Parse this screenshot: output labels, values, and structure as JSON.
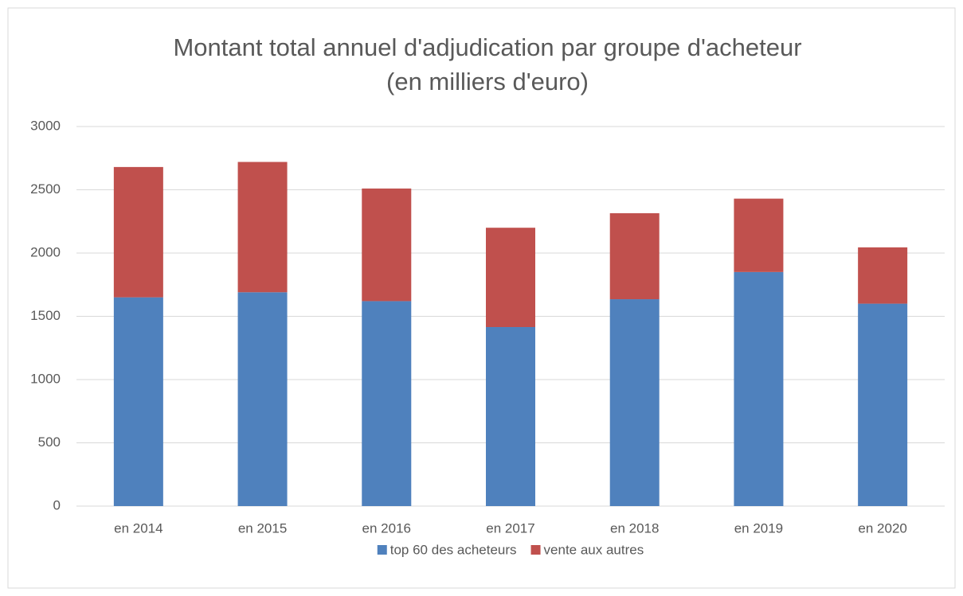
{
  "chart_data": {
    "type": "stacked-bar",
    "title": [
      "Montant total annuel d'adjudication par groupe d'acheteur",
      "(en milliers d'euro)"
    ],
    "categories": [
      "en 2014",
      "en 2015",
      "en 2016",
      "en 2017",
      "en 2018",
      "en 2019",
      "en 2020"
    ],
    "series": [
      {
        "name": "top 60 des acheteurs",
        "color": "#4f81bd",
        "values": [
          1650,
          1690,
          1620,
          1415,
          1635,
          1850,
          1600
        ]
      },
      {
        "name": "vente aux autres",
        "color": "#c0504d",
        "values": [
          1030,
          1030,
          890,
          785,
          680,
          580,
          445
        ]
      }
    ],
    "ylim": [
      0,
      3000
    ],
    "yticks": [
      0,
      500,
      1000,
      1500,
      2000,
      2500,
      3000
    ],
    "grid": true,
    "legend": "bottom"
  }
}
